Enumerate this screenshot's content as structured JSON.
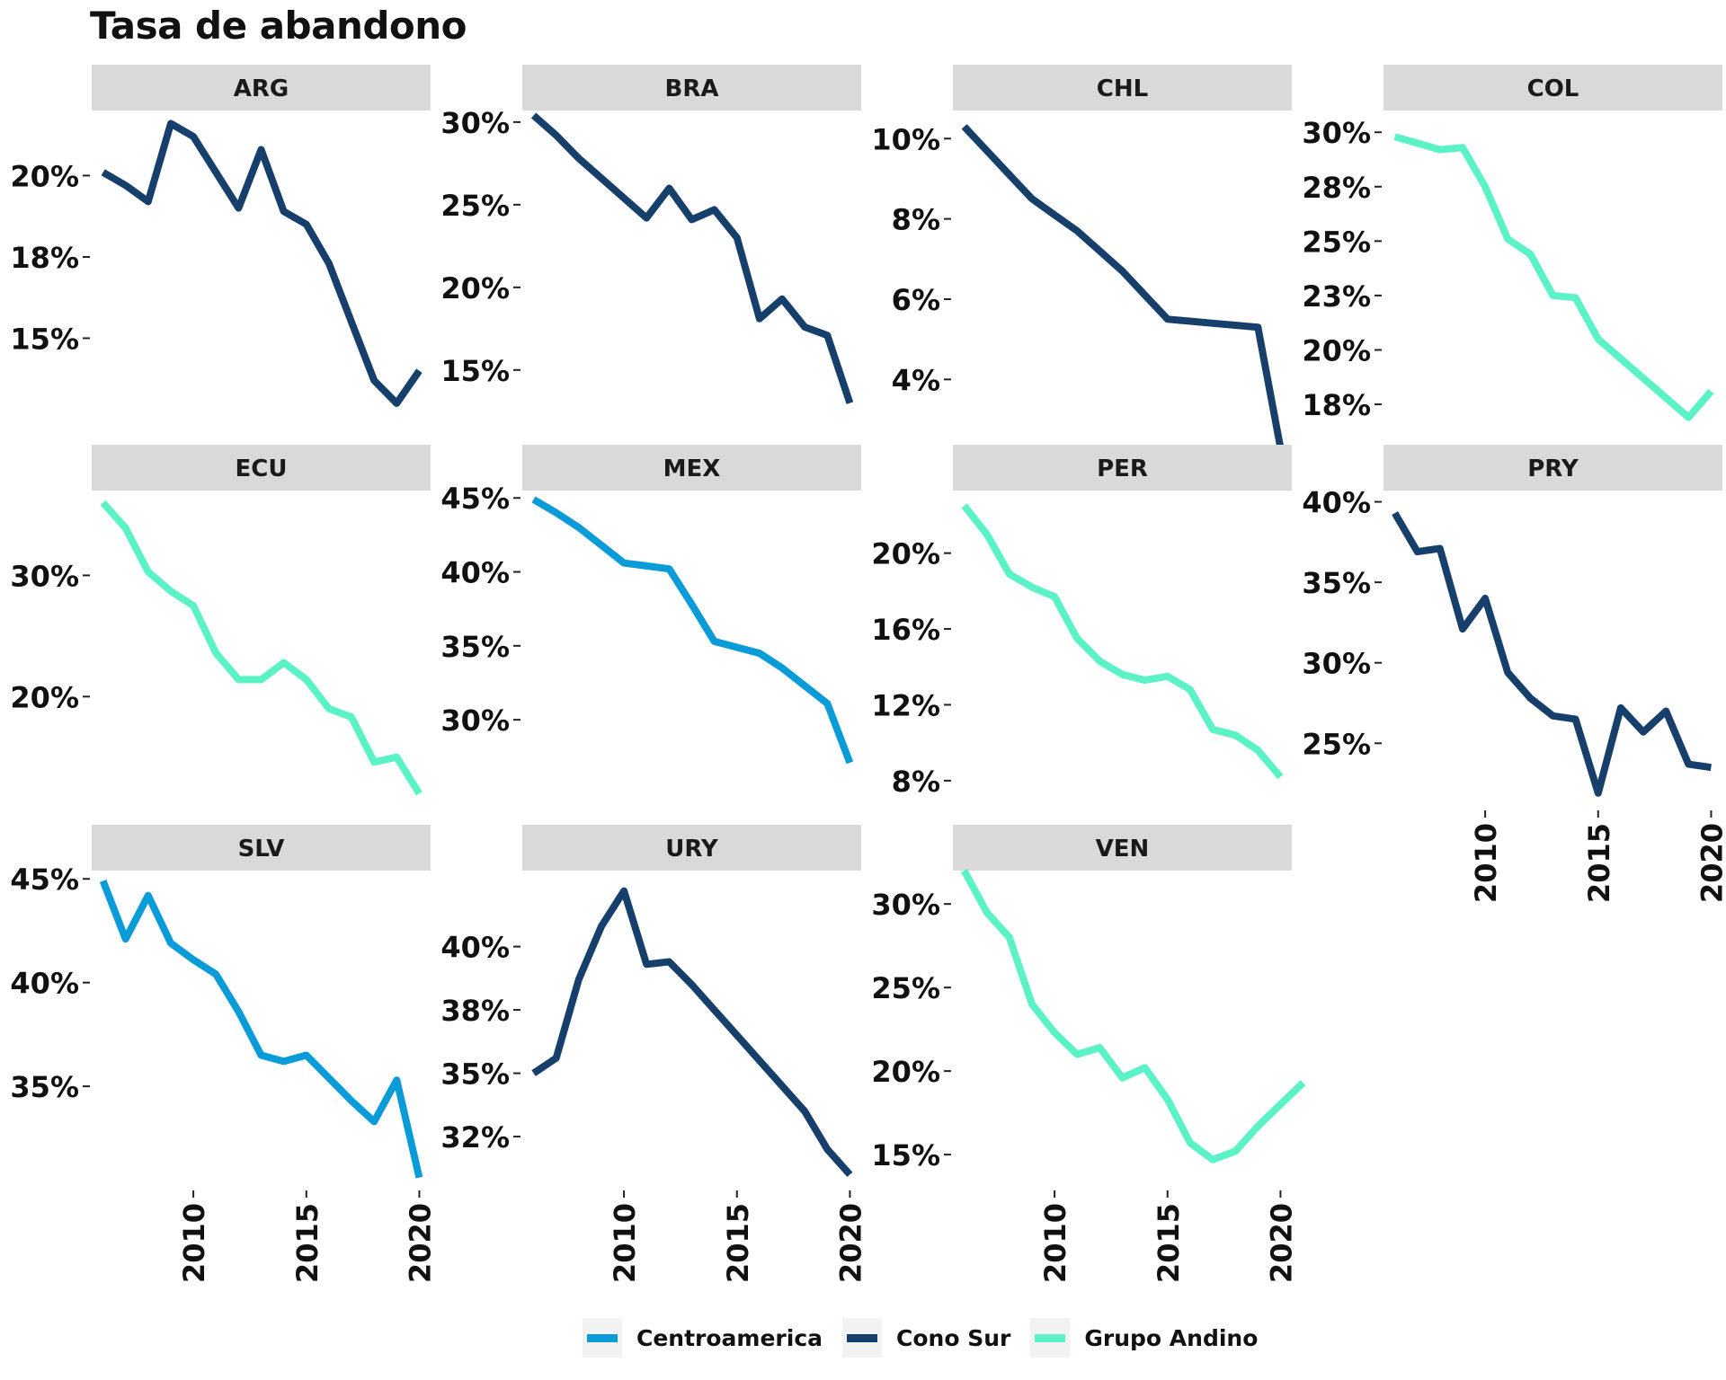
{
  "chart_data": {
    "type": "line",
    "title": "Tasa de abandono",
    "layout": "facet_wrap 3 rows x 4 columns, free y scales, shared x axis",
    "x_ticks": [
      2010,
      2015,
      2020
    ],
    "xlim": [
      2005.5,
      2020.5
    ],
    "legend_position": "bottom",
    "legend": [
      {
        "name": "Centroamerica",
        "color": "#0a9bd9"
      },
      {
        "name": "Cono Sur",
        "color": "#173f6b"
      },
      {
        "name": "Grupo Andino",
        "color": "#5cf2c8"
      }
    ],
    "panels": [
      {
        "name": "ARG",
        "group": "Cono Sur",
        "ylim": [
          12.5,
          22.0
        ],
        "y_ticks": [
          15,
          17.5,
          20
        ],
        "y_tick_labels": [
          "15%",
          "18%",
          "20%"
        ],
        "x": [
          2006,
          2007,
          2008,
          2009,
          2010,
          2011,
          2012,
          2013,
          2014,
          2015,
          2016,
          2017,
          2018,
          2019,
          2020
        ],
        "y": [
          20.1,
          19.7,
          19.2,
          21.6,
          21.2,
          20.1,
          19.0,
          20.8,
          18.9,
          18.5,
          17.3,
          15.5,
          13.7,
          13.0,
          14.0
        ]
      },
      {
        "name": "BRA",
        "group": "Cono Sur",
        "ylim": [
          12.0,
          30.7
        ],
        "y_ticks": [
          15,
          20,
          25,
          30
        ],
        "y_tick_labels": [
          "15%",
          "20%",
          "25%",
          "30%"
        ],
        "x": [
          2006,
          2007,
          2008,
          2009,
          2010,
          2011,
          2012,
          2013,
          2014,
          2015,
          2016,
          2017,
          2018,
          2019,
          2020
        ],
        "y": [
          30.4,
          29.2,
          27.8,
          26.6,
          25.4,
          24.2,
          26.0,
          24.1,
          24.7,
          23.0,
          18.1,
          19.3,
          17.6,
          17.1,
          13.0
        ]
      },
      {
        "name": "CHL",
        "group": "Cono Sur",
        "ylim": [
          3.0,
          10.7
        ],
        "y_ticks": [
          4,
          6,
          8,
          10
        ],
        "y_tick_labels": [
          "4%",
          "6%",
          "8%",
          "10%"
        ],
        "x": [
          2006,
          2007,
          2008,
          2009,
          2010,
          2011,
          2012,
          2013,
          2014,
          2015,
          2016,
          2017,
          2018,
          2019,
          2020
        ],
        "y": [
          10.3,
          9.7,
          9.1,
          8.5,
          8.1,
          7.7,
          7.2,
          6.7,
          6.1,
          5.5,
          5.45,
          5.4,
          5.35,
          5.3,
          2.3
        ]
      },
      {
        "name": "COL",
        "group": "Grupo Andino",
        "ylim": [
          16.8,
          31.0
        ],
        "y_ticks": [
          17.5,
          20,
          22.5,
          25,
          27.5,
          30
        ],
        "y_tick_labels": [
          "18%",
          "20%",
          "23%",
          "25%",
          "28%",
          "30%"
        ],
        "x": [
          2006,
          2007,
          2008,
          2009,
          2010,
          2011,
          2012,
          2013,
          2014,
          2015,
          2016,
          2017,
          2018,
          2019,
          2020
        ],
        "y": [
          29.8,
          29.5,
          29.2,
          29.3,
          27.5,
          25.1,
          24.4,
          22.5,
          22.4,
          20.5,
          19.6,
          18.7,
          17.8,
          16.9,
          18.1
        ]
      },
      {
        "name": "ECU",
        "group": "Grupo Andino",
        "ylim": [
          11.5,
          37.0
        ],
        "y_ticks": [
          20,
          30
        ],
        "y_tick_labels": [
          "20%",
          "30%"
        ],
        "x": [
          2006,
          2007,
          2008,
          2009,
          2010,
          2011,
          2012,
          2013,
          2014,
          2015,
          2016,
          2017,
          2018,
          2019,
          2020
        ],
        "y": [
          36.0,
          33.9,
          30.3,
          28.7,
          27.5,
          23.6,
          21.4,
          21.4,
          22.8,
          21.4,
          19.0,
          18.3,
          14.6,
          15.0,
          12.0
        ]
      },
      {
        "name": "MEX",
        "group": "Centroamerica",
        "ylim": [
          24.6,
          45.5
        ],
        "y_ticks": [
          30,
          35,
          40,
          45
        ],
        "y_tick_labels": [
          "30%",
          "35%",
          "40%",
          "45%"
        ],
        "x": [
          2006,
          2007,
          2008,
          2009,
          2010,
          2011,
          2012,
          2013,
          2014,
          2015,
          2016,
          2017,
          2018,
          2019,
          2020
        ],
        "y": [
          44.9,
          44.0,
          43.0,
          41.8,
          40.6,
          40.4,
          40.2,
          37.8,
          35.3,
          34.9,
          34.5,
          33.5,
          32.3,
          31.1,
          27.1
        ]
      },
      {
        "name": "PER",
        "group": "Grupo Andino",
        "ylim": [
          7.0,
          23.3
        ],
        "y_ticks": [
          8,
          12,
          16,
          20
        ],
        "y_tick_labels": [
          "8%",
          "12%",
          "16%",
          "20%"
        ],
        "x": [
          2006,
          2007,
          2008,
          2009,
          2010,
          2011,
          2012,
          2013,
          2014,
          2015,
          2016,
          2017,
          2018,
          2019,
          2020
        ],
        "y": [
          22.5,
          21.0,
          18.9,
          18.2,
          17.7,
          15.5,
          14.3,
          13.6,
          13.3,
          13.5,
          12.8,
          10.7,
          10.4,
          9.6,
          8.2
        ]
      },
      {
        "name": "PRY",
        "group": "Cono Sur",
        "ylim": [
          21.5,
          40.7
        ],
        "y_ticks": [
          25,
          30,
          35,
          40
        ],
        "y_tick_labels": [
          "25%",
          "30%",
          "35%",
          "40%"
        ],
        "x": [
          2006,
          2007,
          2008,
          2009,
          2010,
          2011,
          2012,
          2013,
          2014,
          2015,
          2016,
          2017,
          2018,
          2019,
          2020
        ],
        "y": [
          39.3,
          36.9,
          37.1,
          32.1,
          34.0,
          29.4,
          27.8,
          26.7,
          26.5,
          21.9,
          27.2,
          25.7,
          27.0,
          23.7,
          23.5
        ]
      },
      {
        "name": "SLV",
        "group": "Centroamerica",
        "ylim": [
          30.5,
          45.4
        ],
        "y_ticks": [
          35,
          40,
          45
        ],
        "y_tick_labels": [
          "35%",
          "40%",
          "45%"
        ],
        "x": [
          2006,
          2007,
          2008,
          2009,
          2010,
          2011,
          2012,
          2013,
          2014,
          2015,
          2016,
          2017,
          2018,
          2019,
          2020
        ],
        "y": [
          44.9,
          42.1,
          44.2,
          41.9,
          41.1,
          40.4,
          38.6,
          36.5,
          36.2,
          36.5,
          35.4,
          34.3,
          33.3,
          35.3,
          30.6
        ]
      },
      {
        "name": "URY",
        "group": "Cono Sur",
        "ylim": [
          30.8,
          43.0
        ],
        "y_ticks": [
          32.5,
          35,
          37.5,
          40
        ],
        "y_tick_labels": [
          "32%",
          "35%",
          "38%",
          "40%"
        ],
        "x": [
          2006,
          2007,
          2008,
          2009,
          2010,
          2011,
          2012,
          2013,
          2014,
          2015,
          2016,
          2017,
          2018,
          2019,
          2020
        ],
        "y": [
          35.0,
          35.6,
          38.7,
          40.8,
          42.2,
          39.3,
          39.4,
          38.5,
          37.5,
          36.5,
          35.5,
          34.5,
          33.5,
          32.0,
          31.0
        ]
      },
      {
        "name": "VEN",
        "group": "Grupo Andino",
        "ylim": [
          13.5,
          32.0
        ],
        "y_ticks": [
          15,
          20,
          25,
          30
        ],
        "y_tick_labels": [
          "15%",
          "20%",
          "25%",
          "30%"
        ],
        "x": [
          2006,
          2007,
          2008,
          2009,
          2010,
          2011,
          2012,
          2013,
          2014,
          2015,
          2016,
          2017,
          2018,
          2019,
          2020,
          2021
        ],
        "y": [
          32.0,
          29.5,
          28.0,
          24.0,
          22.3,
          21.0,
          21.4,
          19.6,
          20.2,
          18.3,
          15.7,
          14.7,
          15.2,
          16.7,
          18.0,
          19.3
        ]
      }
    ]
  }
}
